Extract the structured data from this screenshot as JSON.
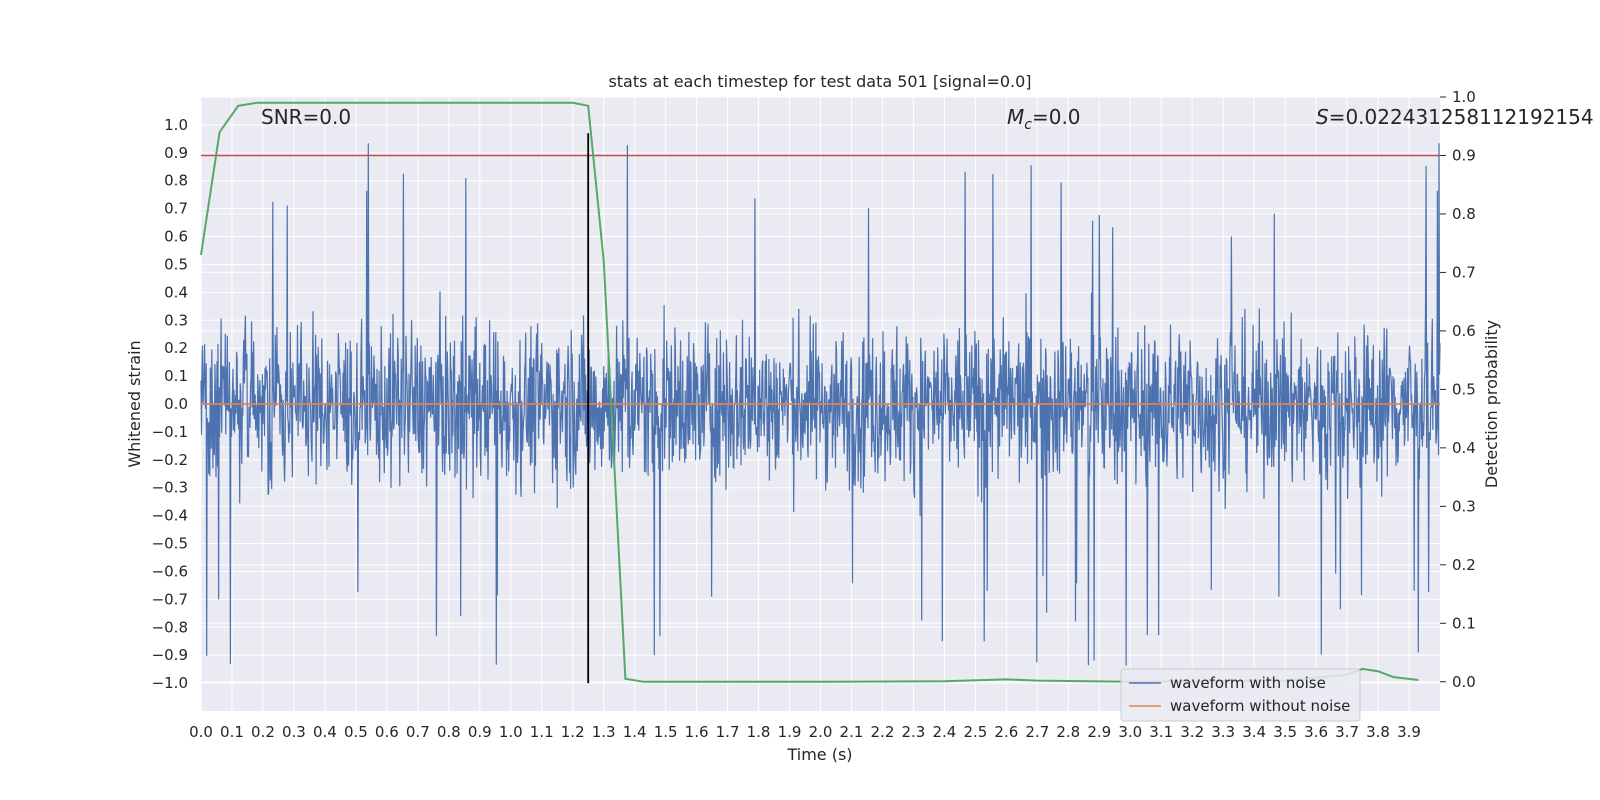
{
  "chart_data": {
    "type": "line",
    "title": "stats at each timestep for test data 501 [signal=0.0]",
    "xlabel": "Time (s)",
    "ylabel": "Whitened strain",
    "ylabel_right": "Detection probability",
    "xlim": [
      0.0,
      4.0
    ],
    "ylim": [
      -1.1,
      1.1
    ],
    "ylim_right": [
      -0.05,
      1.0
    ],
    "x_ticks": [
      "0.0",
      "0.1",
      "0.2",
      "0.3",
      "0.4",
      "0.5",
      "0.6",
      "0.7",
      "0.8",
      "0.9",
      "1.0",
      "1.1",
      "1.2",
      "1.3",
      "1.4",
      "1.5",
      "1.6",
      "1.7",
      "1.8",
      "1.9",
      "2.0",
      "2.1",
      "2.2",
      "2.3",
      "2.4",
      "2.5",
      "2.6",
      "2.7",
      "2.8",
      "2.9",
      "3.0",
      "3.1",
      "3.2",
      "3.3",
      "3.4",
      "3.5",
      "3.6",
      "3.7",
      "3.8",
      "3.9"
    ],
    "y_ticks": [
      "1.0",
      "0.9",
      "0.8",
      "0.7",
      "0.6",
      "0.5",
      "0.4",
      "0.3",
      "0.2",
      "0.1",
      "0.0",
      "−0.1",
      "−0.2",
      "−0.3",
      "−0.4",
      "−0.5",
      "−0.6",
      "−0.7",
      "−0.8",
      "−0.9",
      "−1.0"
    ],
    "y_ticks_right": [
      "1.0",
      "0.9",
      "0.8",
      "0.7",
      "0.6",
      "0.5",
      "0.4",
      "0.3",
      "0.2",
      "0.1",
      "0.0"
    ],
    "annotations": {
      "snr": "SNR=0.0",
      "mc": "=0.0",
      "mc_symbol": "M",
      "mc_sub": "c",
      "s": "=0.022431258112192154",
      "s_symbol": "S"
    },
    "grid": true,
    "legend": {
      "placement": "lower-right",
      "entries": [
        "waveform with noise",
        "waveform without noise"
      ]
    },
    "series": [
      {
        "name": "waveform with noise",
        "color": "#4c72b0",
        "axis": "left",
        "kind": "noise",
        "x_range": [
          0.0,
          4.0
        ],
        "approx_amplitude": 0.4,
        "max": 0.97,
        "min": -1.0
      },
      {
        "name": "waveform without noise",
        "color": "#dd8452",
        "axis": "left",
        "x": [
          0.0,
          4.0
        ],
        "y": [
          0.0,
          0.0
        ]
      },
      {
        "name": "detection probability",
        "color": "#55a868",
        "axis": "right",
        "x": [
          0.0,
          0.06,
          0.12,
          0.18,
          0.25,
          0.5,
          0.8,
          1.0,
          1.2,
          1.25,
          1.3,
          1.37,
          1.43,
          1.5,
          2.0,
          2.4,
          2.6,
          2.7,
          3.0,
          3.5,
          3.7,
          3.75,
          3.8,
          3.85,
          3.93
        ],
        "y": [
          0.73,
          0.94,
          0.985,
          0.99,
          0.99,
          0.99,
          0.99,
          0.99,
          0.99,
          0.985,
          0.72,
          0.005,
          0.0,
          0.0,
          0.0,
          0.001,
          0.004,
          0.002,
          0.0,
          0.002,
          0.012,
          0.022,
          0.018,
          0.008,
          0.003
        ]
      }
    ],
    "reference_lines": [
      {
        "kind": "horizontal",
        "axis": "right",
        "value": 0.9,
        "color": "#c44e52"
      },
      {
        "kind": "vertical",
        "value": 1.25,
        "y_range": [
          -1.0,
          0.97
        ],
        "color": "#000000"
      }
    ],
    "colors": {
      "background": "#eaeaf2",
      "grid": "#ffffff"
    }
  }
}
